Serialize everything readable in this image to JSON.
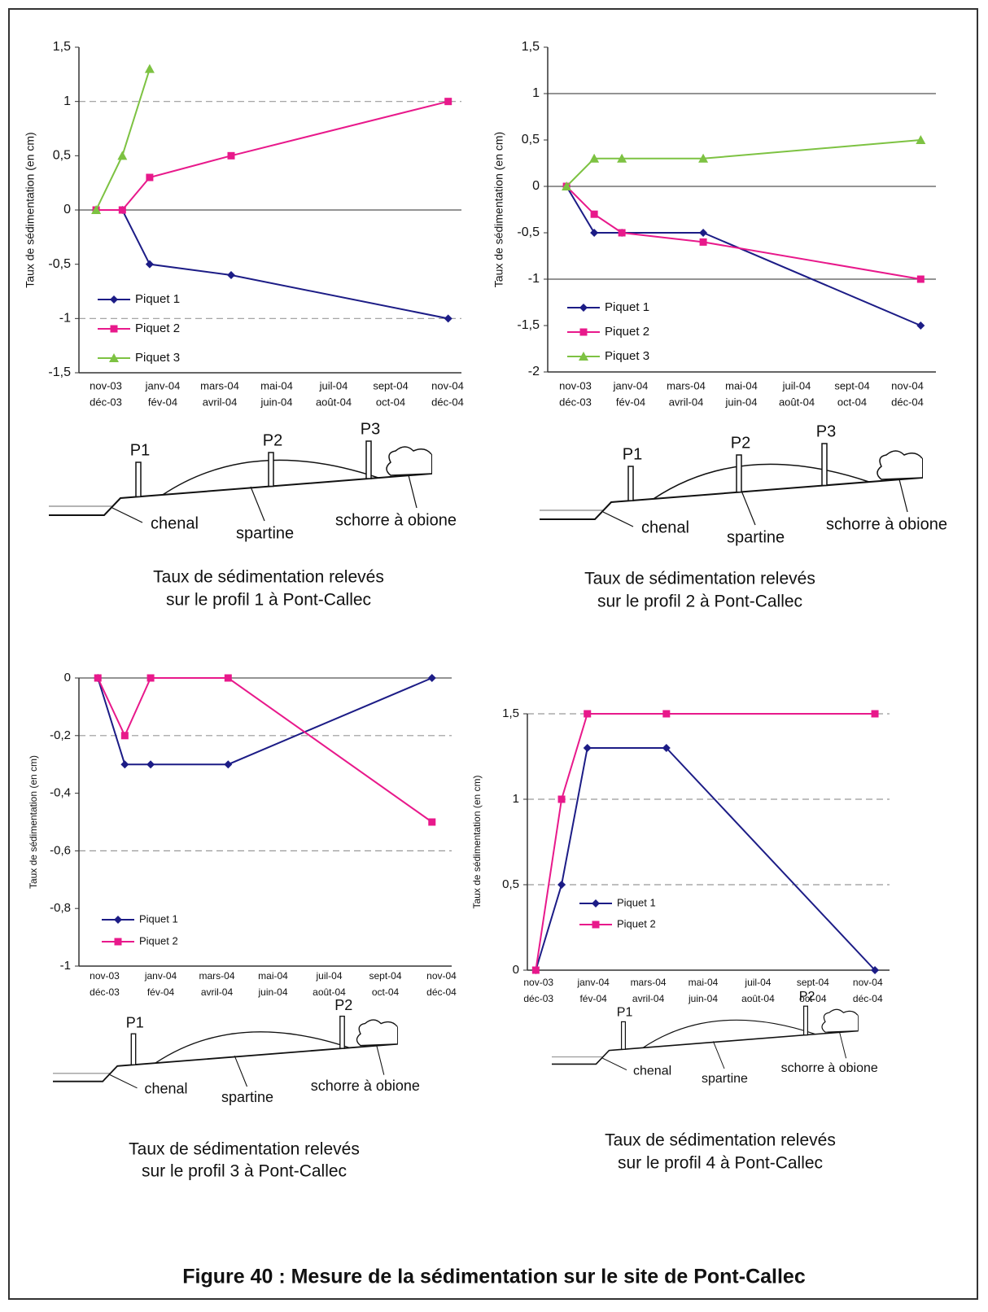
{
  "chart_data": [
    {
      "type": "line",
      "y_title": "Taux de sédimentation (en cm)",
      "categories": [
        [
          "nov-03",
          "déc-03"
        ],
        [
          "janv-04",
          "fév-04"
        ],
        [
          "mars-04",
          "avril-04"
        ],
        [
          "mai-04",
          "juin-04"
        ],
        [
          "juil-04",
          "août-04"
        ],
        [
          "sept-04",
          "oct-04"
        ],
        [
          "nov-04",
          "déc-04"
        ]
      ],
      "xlim": [
        0,
        7
      ],
      "ylim": [
        -1.5,
        1.5
      ],
      "yticks": [
        {
          "value": -1.5,
          "label": "-1,5"
        },
        -1,
        {
          "value": -0.5,
          "label": "-0,5"
        },
        0,
        {
          "value": 0.5,
          "label": "0,5"
        },
        1,
        {
          "value": 1.5,
          "label": "1,5"
        }
      ],
      "hlines": [
        {
          "value": 1,
          "style": "dashed"
        },
        {
          "value": 0,
          "style": "solid"
        },
        {
          "value": -1,
          "style": "dashed"
        }
      ],
      "series": [
        {
          "name": "Piquet 1",
          "color": "#1c1c86",
          "marker": "diamond",
          "x": [
            0.33,
            0.79,
            1.27,
            2.7,
            6.51
          ],
          "values": [
            0,
            0,
            -0.5,
            -0.6,
            -1
          ]
        },
        {
          "name": "Piquet 2",
          "color": "#e8198b",
          "marker": "square",
          "x": [
            0.33,
            0.79,
            1.27,
            2.7,
            6.51
          ],
          "values": [
            0,
            0,
            0.3,
            0.5,
            1
          ]
        },
        {
          "name": "Piquet 3",
          "color": "#7dc242",
          "marker": "triangle",
          "x": [
            0.33,
            0.79,
            1.27
          ],
          "values": [
            0,
            0.5,
            1.3
          ]
        }
      ]
    },
    {
      "type": "line",
      "y_title": "Taux de sédimentation (en cm)",
      "categories": [
        [
          "nov-03",
          "déc-03"
        ],
        [
          "janv-04",
          "fév-04"
        ],
        [
          "mars-04",
          "avril-04"
        ],
        [
          "mai-04",
          "juin-04"
        ],
        [
          "juil-04",
          "août-04"
        ],
        [
          "sept-04",
          "oct-04"
        ],
        [
          "nov-04",
          "déc-04"
        ]
      ],
      "xlim": [
        0,
        7
      ],
      "ylim": [
        -2,
        1.5
      ],
      "yticks": [
        -2,
        {
          "value": -1.5,
          "label": "-1,5"
        },
        -1,
        {
          "value": -0.5,
          "label": "-0,5"
        },
        0,
        {
          "value": 0.5,
          "label": "0,5"
        },
        1,
        {
          "value": 1.5,
          "label": "1,5"
        }
      ],
      "hlines": [
        {
          "value": 1,
          "style": "solid"
        },
        {
          "value": 0,
          "style": "solid"
        },
        {
          "value": -1,
          "style": "solid"
        }
      ],
      "series": [
        {
          "name": "Piquet 1",
          "color": "#1c1c86",
          "marker": "diamond",
          "x": [
            0.34,
            0.84,
            1.34,
            2.81,
            6.74
          ],
          "values": [
            0,
            -0.5,
            -0.5,
            -0.5,
            -1.5
          ]
        },
        {
          "name": "Piquet 2",
          "color": "#e8198b",
          "marker": "square",
          "x": [
            0.34,
            0.84,
            1.34,
            2.81,
            6.74
          ],
          "values": [
            0,
            -0.3,
            -0.5,
            -0.6,
            -1
          ]
        },
        {
          "name": "Piquet 3",
          "color": "#7dc242",
          "marker": "triangle",
          "x": [
            0.34,
            0.84,
            1.34,
            2.81,
            6.74
          ],
          "values": [
            0,
            0.3,
            0.3,
            0.3,
            0.5
          ]
        }
      ]
    },
    {
      "type": "line",
      "y_title": "Taux de sédimentation (en cm)",
      "categories": [
        [
          "nov-03",
          "déc-03"
        ],
        [
          "janv-04",
          "fév-04"
        ],
        [
          "mars-04",
          "avril-04"
        ],
        [
          "mai-04",
          "juin-04"
        ],
        [
          "juil-04",
          "août-04"
        ],
        [
          "sept-04",
          "oct-04"
        ],
        [
          "nov-04",
          "déc-04"
        ]
      ],
      "xlim": [
        0,
        7
      ],
      "ylim": [
        -1,
        0
      ],
      "yticks": [
        -1,
        {
          "value": -0.8,
          "label": "-0,8"
        },
        {
          "value": -0.6,
          "label": "-0,6"
        },
        {
          "value": -0.4,
          "label": "-0,4"
        },
        {
          "value": -0.2,
          "label": "-0,2"
        },
        0
      ],
      "hlines": [
        {
          "value": 0,
          "style": "solid"
        },
        {
          "value": -0.2,
          "style": "dashed"
        },
        {
          "value": -0.6,
          "style": "dashed"
        }
      ],
      "series": [
        {
          "name": "Piquet 1",
          "color": "#1c1c86",
          "marker": "diamond",
          "x": [
            0.38,
            0.86,
            1.32,
            2.7,
            6.33
          ],
          "values": [
            0,
            -0.3,
            -0.3,
            -0.3,
            0
          ]
        },
        {
          "name": "Piquet 2",
          "color": "#e8198b",
          "marker": "square",
          "x": [
            0.38,
            0.86,
            1.32,
            2.7,
            6.33
          ],
          "values": [
            0,
            -0.2,
            0,
            0,
            -0.5
          ]
        }
      ]
    },
    {
      "type": "line",
      "y_title": "Taux de sédimentation (en cm)",
      "categories": [
        [
          "nov-03",
          "déc-03"
        ],
        [
          "janv-04",
          "fév-04"
        ],
        [
          "mars-04",
          "avril-04"
        ],
        [
          "mai-04",
          "juin-04"
        ],
        [
          "juil-04",
          "août-04"
        ],
        [
          "sept-04",
          "oct-04"
        ],
        [
          "nov-04",
          "déc-04"
        ]
      ],
      "xlim": [
        0,
        7
      ],
      "ylim": [
        0,
        1.5
      ],
      "yticks": [
        0,
        {
          "value": 0.5,
          "label": "0,5"
        },
        1,
        {
          "value": 1.5,
          "label": "1,5"
        }
      ],
      "hlines": [
        {
          "value": 0.5,
          "style": "dashed"
        },
        {
          "value": 1,
          "style": "dashed"
        },
        {
          "value": 1.5,
          "style": "dashed"
        }
      ],
      "series": [
        {
          "name": "Piquet 1",
          "color": "#1c1c86",
          "marker": "diamond",
          "x": [
            0.45,
            0.92,
            1.39,
            2.83,
            6.63
          ],
          "values": [
            0,
            0.5,
            1.3,
            1.3,
            0
          ]
        },
        {
          "name": "Piquet 2",
          "color": "#e8198b",
          "marker": "square",
          "x": [
            0.45,
            0.92,
            1.39,
            2.83,
            6.63
          ],
          "values": [
            0,
            1,
            1.5,
            1.5,
            1.5
          ]
        }
      ]
    }
  ],
  "profiles": [
    {
      "posts": [
        "P1",
        "P2",
        "P3"
      ],
      "labels": [
        "chenal",
        "spartine",
        "schorre à obione"
      ],
      "caption": [
        "Taux de sédimentation relevés",
        "sur le profil 1 à Pont-Callec"
      ]
    },
    {
      "posts": [
        "P1",
        "P2",
        "P3"
      ],
      "labels": [
        "chenal",
        "spartine",
        "schorre à obione"
      ],
      "caption": [
        "Taux de sédimentation relevés",
        "sur le profil 2 à Pont-Callec"
      ]
    },
    {
      "posts": [
        "P1",
        "P2"
      ],
      "labels": [
        "chenal",
        "spartine",
        "schorre à obione"
      ],
      "caption": [
        "Taux de sédimentation relevés",
        "sur le profil 3 à Pont-Callec"
      ]
    },
    {
      "posts": [
        "P1",
        "P2"
      ],
      "labels": [
        "chenal",
        "spartine",
        "schorre à obione"
      ],
      "caption": [
        "Taux de sédimentation relevés",
        "sur le profil 4 à Pont-Callec"
      ]
    }
  ],
  "figure_caption": "Figure 40 : Mesure de la sédimentation sur le site de Pont-Callec"
}
